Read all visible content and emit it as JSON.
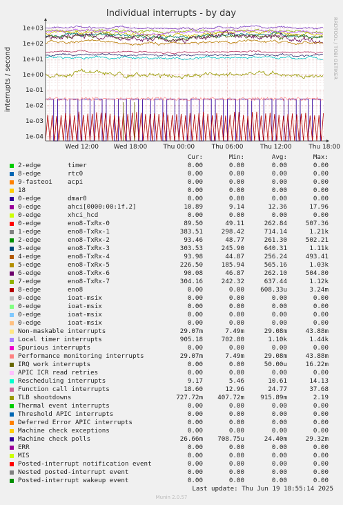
{
  "chart_data": {
    "type": "line",
    "title": "Individual interrupts - by day",
    "ylabel": "interrupts / second",
    "side_label": "RRDTOOL / TOBI OETIKER",
    "y_scale": "log",
    "ylim": [
      5e-05,
      2000
    ],
    "y_ticks": [
      {
        "value": 0.0001,
        "label": "1e-04"
      },
      {
        "value": 0.001,
        "label": "1e-03"
      },
      {
        "value": 0.01,
        "label": "1e-02"
      },
      {
        "value": 0.1,
        "label": "1e-01"
      },
      {
        "value": 1,
        "label": "1e+00"
      },
      {
        "value": 10,
        "label": "1e+01"
      },
      {
        "value": 100,
        "label": "1e+02"
      },
      {
        "value": 1000,
        "label": "1e+03"
      }
    ],
    "x_unit": "hours since Wed 07:30",
    "xlim": [
      0,
      34.4
    ],
    "x_ticks": [
      {
        "value": 4.5,
        "label": "Wed 12:00"
      },
      {
        "value": 10.5,
        "label": "Wed 18:00"
      },
      {
        "value": 16.5,
        "label": "Thu 00:00"
      },
      {
        "value": 22.5,
        "label": "Thu 06:00"
      },
      {
        "value": 28.5,
        "label": "Thu 12:00"
      },
      {
        "value": 34.5,
        "label": "Thu 18:00"
      }
    ],
    "grid": true,
    "series_bands": [
      {
        "color": "#7b3fc4",
        "level": 1100,
        "spread": 0.08
      },
      {
        "color": "#8db400",
        "level": 640,
        "spread": 0.1
      },
      {
        "color": "#ccbb00",
        "level": 450,
        "spread": 0.12
      },
      {
        "color": "#00827a",
        "level": 330,
        "spread": 0.12
      },
      {
        "color": "#4a6b00",
        "level": 280,
        "spread": 0.14
      },
      {
        "color": "#c060ff",
        "level": 600,
        "spread": 0.1
      },
      {
        "color": "#6a0f5a",
        "level": 240,
        "spread": 0.22
      },
      {
        "color": "#b87b00",
        "level": 120,
        "spread": 0.1
      },
      {
        "color": "#b03060",
        "level": 28,
        "spread": 0.06
      },
      {
        "color": "#2c2c6e",
        "level": 18,
        "spread": 0.08
      },
      {
        "color": "#00c0c0",
        "level": 12,
        "spread": 0.08
      },
      {
        "color": "#9a9a00",
        "level": 0.9,
        "spread": 0.18
      }
    ]
  },
  "legend": {
    "headers": {
      "cur": "Cur:",
      "min": "Min:",
      "avg": "Avg:",
      "max": "Max:"
    },
    "rows": [
      {
        "color": "#00cc00",
        "label": "2-edge",
        "desc": "timer",
        "cur": "0.00",
        "min": "0.00",
        "avg": "0.00",
        "max": "0.00"
      },
      {
        "color": "#0066b3",
        "label": "8-edge",
        "desc": "rtc0",
        "cur": "0.00",
        "min": "0.00",
        "avg": "0.00",
        "max": "0.00"
      },
      {
        "color": "#ff8000",
        "label": "9-fasteoi",
        "desc": "acpi",
        "cur": "0.00",
        "min": "0.00",
        "avg": "0.00",
        "max": "0.00"
      },
      {
        "color": "#ffcc00",
        "label": "18",
        "desc": "",
        "cur": "0.00",
        "min": "0.00",
        "avg": "0.00",
        "max": "0.00"
      },
      {
        "color": "#330099",
        "label": "0-edge",
        "desc": "dmar0",
        "cur": "0.00",
        "min": "0.00",
        "avg": "0.00",
        "max": "0.00"
      },
      {
        "color": "#990099",
        "label": "0-edge",
        "desc": "ahci[0000:00:1f.2]",
        "cur": "10.89",
        "min": "9.14",
        "avg": "12.36",
        "max": "17.96"
      },
      {
        "color": "#ccff00",
        "label": "0-edge",
        "desc": "xhci_hcd",
        "cur": "0.00",
        "min": "0.00",
        "avg": "0.00",
        "max": "0.00"
      },
      {
        "color": "#ff0000",
        "label": "0-edge",
        "desc": "eno8-TxRx-0",
        "cur": "89.50",
        "min": "49.11",
        "avg": "262.84",
        "max": "507.36"
      },
      {
        "color": "#808080",
        "label": "1-edge",
        "desc": "eno8-TxRx-1",
        "cur": "383.51",
        "min": "298.42",
        "avg": "714.14",
        "max": "1.21k"
      },
      {
        "color": "#008f00",
        "label": "2-edge",
        "desc": "eno8-TxRx-2",
        "cur": "93.46",
        "min": "48.77",
        "avg": "261.30",
        "max": "502.21"
      },
      {
        "color": "#00487d",
        "label": "3-edge",
        "desc": "eno8-TxRx-3",
        "cur": "303.53",
        "min": "245.90",
        "avg": "640.31",
        "max": "1.11k"
      },
      {
        "color": "#b35a00",
        "label": "4-edge",
        "desc": "eno8-TxRx-4",
        "cur": "93.98",
        "min": "44.87",
        "avg": "256.24",
        "max": "493.41"
      },
      {
        "color": "#b38f00",
        "label": "5-edge",
        "desc": "eno8-TxRx-5",
        "cur": "226.50",
        "min": "185.94",
        "avg": "565.16",
        "max": "1.03k"
      },
      {
        "color": "#6b006b",
        "label": "6-edge",
        "desc": "eno8-TxRx-6",
        "cur": "90.08",
        "min": "46.87",
        "avg": "262.10",
        "max": "504.80"
      },
      {
        "color": "#8fb300",
        "label": "7-edge",
        "desc": "eno8-TxRx-7",
        "cur": "304.16",
        "min": "242.32",
        "avg": "637.44",
        "max": "1.12k"
      },
      {
        "color": "#b30000",
        "label": "8-edge",
        "desc": "eno8",
        "cur": "0.00",
        "min": "0.00",
        "avg": "608.33u",
        "max": "3.24m"
      },
      {
        "color": "#bebebe",
        "label": "0-edge",
        "desc": "ioat-msix",
        "cur": "0.00",
        "min": "0.00",
        "avg": "0.00",
        "max": "0.00"
      },
      {
        "color": "#80ff80",
        "label": "0-edge",
        "desc": "ioat-msix",
        "cur": "0.00",
        "min": "0.00",
        "avg": "0.00",
        "max": "0.00"
      },
      {
        "color": "#80c9ff",
        "label": "0-edge",
        "desc": "ioat-msix",
        "cur": "0.00",
        "min": "0.00",
        "avg": "0.00",
        "max": "0.00"
      },
      {
        "color": "#ffc080",
        "label": "0-edge",
        "desc": "ioat-msix",
        "cur": "0.00",
        "min": "0.00",
        "avg": "0.00",
        "max": "0.00"
      },
      {
        "color": "#ffe680",
        "label": "Non-maskable interrupts",
        "desc": "",
        "cur": "29.07m",
        "min": "7.49m",
        "avg": "29.08m",
        "max": "43.88m"
      },
      {
        "color": "#aa80ff",
        "label": "Local timer interrupts",
        "desc": "",
        "cur": "905.18",
        "min": "702.80",
        "avg": "1.10k",
        "max": "1.44k"
      },
      {
        "color": "#ee00cc",
        "label": "Spurious interrupts",
        "desc": "",
        "cur": "0.00",
        "min": "0.00",
        "avg": "0.00",
        "max": "0.00"
      },
      {
        "color": "#ff8080",
        "label": "Performance monitoring interrupts",
        "desc": "",
        "cur": "29.07m",
        "min": "7.49m",
        "avg": "29.08m",
        "max": "43.88m"
      },
      {
        "color": "#666600",
        "label": "IRQ work interrupts",
        "desc": "",
        "cur": "0.00",
        "min": "0.00",
        "avg": "50.00u",
        "max": "16.22m"
      },
      {
        "color": "#ffbfff",
        "label": "APIC ICR read retries",
        "desc": "",
        "cur": "0.00",
        "min": "0.00",
        "avg": "0.00",
        "max": "0.00"
      },
      {
        "color": "#00ffcc",
        "label": "Rescheduling interrupts",
        "desc": "",
        "cur": "9.17",
        "min": "5.46",
        "avg": "10.61",
        "max": "14.13"
      },
      {
        "color": "#cc6699",
        "label": "Function call interrupts",
        "desc": "",
        "cur": "18.60",
        "min": "12.96",
        "avg": "24.77",
        "max": "37.68"
      },
      {
        "color": "#999900",
        "label": "TLB shootdowns",
        "desc": "",
        "cur": "727.72m",
        "min": "407.72m",
        "avg": "915.89m",
        "max": "2.19"
      },
      {
        "color": "#00cc00",
        "label": "Thermal event interrupts",
        "desc": "",
        "cur": "0.00",
        "min": "0.00",
        "avg": "0.00",
        "max": "0.00"
      },
      {
        "color": "#0066b3",
        "label": "Threshold APIC interrupts",
        "desc": "",
        "cur": "0.00",
        "min": "0.00",
        "avg": "0.00",
        "max": "0.00"
      },
      {
        "color": "#ff8000",
        "label": "Deferred Error APIC interrupts",
        "desc": "",
        "cur": "0.00",
        "min": "0.00",
        "avg": "0.00",
        "max": "0.00"
      },
      {
        "color": "#ffcc00",
        "label": "Machine check exceptions",
        "desc": "",
        "cur": "0.00",
        "min": "0.00",
        "avg": "0.00",
        "max": "0.00"
      },
      {
        "color": "#330099",
        "label": "Machine check polls",
        "desc": "",
        "cur": "26.66m",
        "min": "708.75u",
        "avg": "24.40m",
        "max": "29.32m"
      },
      {
        "color": "#990099",
        "label": "ERR",
        "desc": "",
        "cur": "0.00",
        "min": "0.00",
        "avg": "0.00",
        "max": "0.00"
      },
      {
        "color": "#ccff00",
        "label": "MIS",
        "desc": "",
        "cur": "0.00",
        "min": "0.00",
        "avg": "0.00",
        "max": "0.00"
      },
      {
        "color": "#ff0000",
        "label": "Posted-interrupt notification event",
        "desc": "",
        "cur": "0.00",
        "min": "0.00",
        "avg": "0.00",
        "max": "0.00"
      },
      {
        "color": "#808080",
        "label": "Nested posted-interrupt event",
        "desc": "",
        "cur": "0.00",
        "min": "0.00",
        "avg": "0.00",
        "max": "0.00"
      },
      {
        "color": "#008f00",
        "label": "Posted-interrupt wakeup event",
        "desc": "",
        "cur": "0.00",
        "min": "0.00",
        "avg": "0.00",
        "max": "0.00"
      }
    ]
  },
  "footer": {
    "last_update": "Last update: Thu Jun 19 18:55:14 2025",
    "version": "Munin 2.0.57"
  }
}
